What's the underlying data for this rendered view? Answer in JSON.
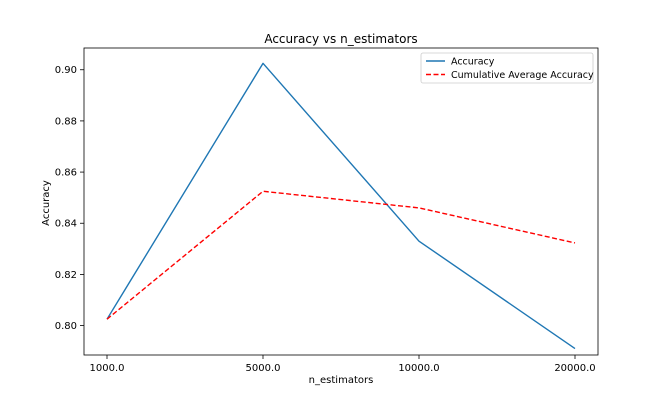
{
  "chart_data": {
    "type": "line",
    "title": "Accuracy vs n_estimators",
    "xlabel": "n_estimators",
    "ylabel": "Accuracy",
    "categories": [
      "1000.0",
      "5000.0",
      "10000.0",
      "20000.0"
    ],
    "ylim": [
      0.7885,
      0.9085
    ],
    "yticks": [
      "0.80",
      "0.82",
      "0.84",
      "0.86",
      "0.88",
      "0.90"
    ],
    "ytick_values": [
      0.8,
      0.82,
      0.84,
      0.86,
      0.88,
      0.9
    ],
    "grid": false,
    "legend_position": "upper right",
    "series": [
      {
        "name": "Accuracy",
        "values": [
          0.8025,
          0.9025,
          0.833,
          0.791
        ],
        "color": "#1f77b4",
        "style": "solid"
      },
      {
        "name": "Cumulative Average Accuracy",
        "values": [
          0.8025,
          0.8525,
          0.846,
          0.8323
        ],
        "color": "#ff0000",
        "style": "dashed"
      }
    ]
  }
}
